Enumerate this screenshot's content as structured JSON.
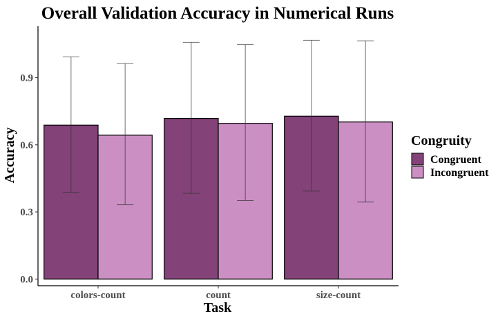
{
  "chart_data": {
    "type": "bar",
    "title": "Overall Validation Accuracy in Numerical Runs",
    "xlabel": "Task",
    "ylabel": "Accuracy",
    "categories": [
      "colors-count",
      "count",
      "size-count"
    ],
    "series": [
      {
        "name": "Congruent",
        "color": "#834278",
        "values": [
          0.688,
          0.718,
          0.728
        ],
        "error_low": [
          0.388,
          0.383,
          0.393
        ],
        "error_high": [
          0.993,
          1.058,
          1.067
        ]
      },
      {
        "name": "Incongruent",
        "color": "#cb8fc4",
        "values": [
          0.643,
          0.696,
          0.702
        ],
        "error_low": [
          0.332,
          0.351,
          0.344
        ],
        "error_high": [
          0.963,
          1.048,
          1.065
        ]
      }
    ],
    "ylim": [
      -0.03,
      1.13
    ],
    "yticks": [
      "0.0",
      "0.3",
      "0.6",
      "0.9"
    ],
    "grid": false,
    "legend": {
      "title": "Congruity",
      "placement": "right",
      "items": [
        "Congruent",
        "Incongruent"
      ]
    }
  }
}
